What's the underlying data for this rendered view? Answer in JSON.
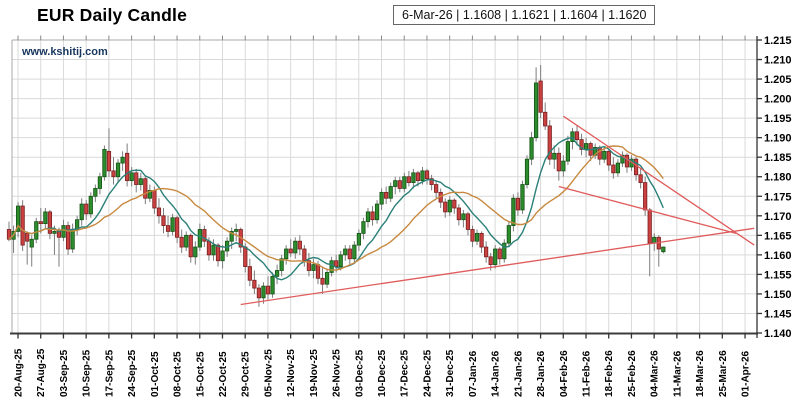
{
  "header": {
    "title": "EUR Daily Candle",
    "watermark": "www.kshitij.com",
    "quote_box": "6-Mar-26 | 1.1608 | 1.1621 | 1.1604 | 1.1620"
  },
  "colors": {
    "up_fill": "#2d8c2d",
    "up_stroke": "#145214",
    "down_fill": "#c94141",
    "down_stroke": "#7a1f1f",
    "wick": "#7d7d7d",
    "ma_fast": "#2b8078",
    "ma_slow": "#c8893f",
    "trendline": "#e05c5c",
    "grid": "#d9d9d9",
    "border": "#a8a8a8",
    "axis_dark": "#3c3c3c",
    "tick": "#333333",
    "label": "#000000"
  },
  "chart_data": {
    "type": "candlestick",
    "title": "EUR Daily Candle",
    "x_axis": {
      "ticks_per_label": 5,
      "label_rotation": -90,
      "labels": [
        "20-Aug-25",
        "27-Aug-25",
        "03-Sep-25",
        "10-Sep-25",
        "17-Sep-25",
        "24-Sep-25",
        "01-Oct-25",
        "08-Oct-25",
        "15-Oct-25",
        "22-Oct-25",
        "29-Oct-25",
        "05-Nov-25",
        "12-Nov-25",
        "19-Nov-25",
        "26-Nov-25",
        "03-Dec-25",
        "10-Dec-25",
        "17-Dec-25",
        "24-Dec-25",
        "31-Dec-25",
        "07-Jan-26",
        "14-Jan-26",
        "21-Jan-26",
        "28-Jan-26",
        "04-Feb-26",
        "11-Feb-26",
        "18-Feb-26",
        "25-Feb-26",
        "04-Mar-26",
        "11-Mar-26",
        "18-Mar-26",
        "25-Mar-26",
        "01-Apr-26"
      ]
    },
    "y_axis": {
      "side": "right",
      "min": 1.14,
      "max": 1.215,
      "step": 0.005,
      "tick_labels": [
        "1.215",
        "1.210",
        "1.205",
        "1.200",
        "1.195",
        "1.190",
        "1.185",
        "1.180",
        "1.175",
        "1.170",
        "1.165",
        "1.160",
        "1.155",
        "1.150",
        "1.145",
        "1.140"
      ]
    },
    "last_quote": {
      "date": "6-Mar-26",
      "open": 1.1608,
      "high": 1.1621,
      "low": 1.1604,
      "close": 1.162
    },
    "candles_format": [
      "date",
      "open",
      "high",
      "low",
      "close"
    ],
    "candles": [
      [
        "18-Aug-25",
        1.1665,
        1.1685,
        1.1635,
        1.164
      ],
      [
        "19-Aug-25",
        1.164,
        1.1675,
        1.1605,
        1.166
      ],
      [
        "20-Aug-25",
        1.166,
        1.1735,
        1.1645,
        1.1725
      ],
      [
        "21-Aug-25",
        1.1725,
        1.174,
        1.161,
        1.1625
      ],
      [
        "22-Aug-25",
        1.1655,
        1.166,
        1.1575,
        1.1635
      ],
      [
        "25-Aug-25",
        1.162,
        1.165,
        1.157,
        1.164
      ],
      [
        "26-Aug-25",
        1.164,
        1.1695,
        1.163,
        1.1685
      ],
      [
        "27-Aug-25",
        1.1685,
        1.172,
        1.1655,
        1.168
      ],
      [
        "28-Aug-25",
        1.168,
        1.172,
        1.1665,
        1.171
      ],
      [
        "29-Aug-25",
        1.171,
        1.1715,
        1.164,
        1.1655
      ],
      [
        "01-Sep-25",
        1.1655,
        1.1675,
        1.16,
        1.166
      ],
      [
        "02-Sep-25",
        1.166,
        1.167,
        1.157,
        1.1645
      ],
      [
        "03-Sep-25",
        1.1645,
        1.169,
        1.1635,
        1.1675
      ],
      [
        "04-Sep-25",
        1.1675,
        1.1685,
        1.16,
        1.1615
      ],
      [
        "05-Sep-25",
        1.1615,
        1.168,
        1.1605,
        1.1665
      ],
      [
        "08-Sep-25",
        1.1665,
        1.17,
        1.165,
        1.169
      ],
      [
        "09-Sep-25",
        1.169,
        1.1745,
        1.1675,
        1.173
      ],
      [
        "10-Sep-25",
        1.173,
        1.174,
        1.169,
        1.1705
      ],
      [
        "11-Sep-25",
        1.1705,
        1.176,
        1.1695,
        1.175
      ],
      [
        "12-Sep-25",
        1.175,
        1.178,
        1.1735,
        1.177
      ],
      [
        "15-Sep-25",
        1.177,
        1.181,
        1.1755,
        1.18
      ],
      [
        "16-Sep-25",
        1.18,
        1.188,
        1.179,
        1.187
      ],
      [
        "17-Sep-25",
        1.1865,
        1.1924,
        1.18,
        1.1815
      ],
      [
        "18-Sep-25",
        1.1815,
        1.185,
        1.178,
        1.18
      ],
      [
        "19-Sep-25",
        1.18,
        1.1845,
        1.1785,
        1.1835
      ],
      [
        "22-Sep-25",
        1.1835,
        1.1865,
        1.1815,
        1.185
      ],
      [
        "23-Sep-25",
        1.186,
        1.1885,
        1.1775,
        1.179
      ],
      [
        "24-Sep-25",
        1.179,
        1.1825,
        1.1775,
        1.181
      ],
      [
        "25-Sep-25",
        1.181,
        1.182,
        1.176,
        1.178
      ],
      [
        "26-Sep-25",
        1.178,
        1.181,
        1.1765,
        1.1795
      ],
      [
        "29-Sep-25",
        1.1795,
        1.18,
        1.173,
        1.1745
      ],
      [
        "30-Sep-25",
        1.1745,
        1.178,
        1.1735,
        1.1765
      ],
      [
        "01-Oct-25",
        1.1765,
        1.1775,
        1.1705,
        1.172
      ],
      [
        "02-Oct-25",
        1.172,
        1.1745,
        1.168,
        1.17
      ],
      [
        "03-Oct-25",
        1.17,
        1.172,
        1.1655,
        1.1675
      ],
      [
        "06-Oct-25",
        1.1675,
        1.17,
        1.1645,
        1.166
      ],
      [
        "07-Oct-25",
        1.166,
        1.1705,
        1.165,
        1.1695
      ],
      [
        "08-Oct-25",
        1.1695,
        1.17,
        1.163,
        1.1645
      ],
      [
        "09-Oct-25",
        1.1645,
        1.1665,
        1.1605,
        1.162
      ],
      [
        "10-Oct-25",
        1.162,
        1.166,
        1.161,
        1.165
      ],
      [
        "13-Oct-25",
        1.165,
        1.1655,
        1.158,
        1.1595
      ],
      [
        "14-Oct-25",
        1.1595,
        1.1635,
        1.1575,
        1.162
      ],
      [
        "15-Oct-25",
        1.162,
        1.168,
        1.161,
        1.1665
      ],
      [
        "16-Oct-25",
        1.1665,
        1.1675,
        1.162,
        1.1635
      ],
      [
        "17-Oct-25",
        1.1635,
        1.1645,
        1.1585,
        1.16
      ],
      [
        "20-Oct-25",
        1.16,
        1.164,
        1.1585,
        1.1625
      ],
      [
        "21-Oct-25",
        1.1625,
        1.163,
        1.157,
        1.1585
      ],
      [
        "22-Oct-25",
        1.1585,
        1.1625,
        1.1565,
        1.161
      ],
      [
        "23-Oct-25",
        1.161,
        1.1645,
        1.1595,
        1.1635
      ],
      [
        "24-Oct-25",
        1.1635,
        1.167,
        1.1615,
        1.166
      ],
      [
        "27-Oct-25",
        1.166,
        1.168,
        1.1635,
        1.1665
      ],
      [
        "28-Oct-25",
        1.1665,
        1.167,
        1.1605,
        1.162
      ],
      [
        "29-Oct-25",
        1.162,
        1.163,
        1.1555,
        1.157
      ],
      [
        "30-Oct-25",
        1.157,
        1.159,
        1.152,
        1.1535
      ],
      [
        "31-Oct-25",
        1.1535,
        1.156,
        1.15,
        1.1515
      ],
      [
        "03-Nov-25",
        1.1515,
        1.1525,
        1.1467,
        1.149
      ],
      [
        "04-Nov-25",
        1.149,
        1.153,
        1.1475,
        1.152
      ],
      [
        "05-Nov-25",
        1.152,
        1.1545,
        1.1485,
        1.15
      ],
      [
        "06-Nov-25",
        1.15,
        1.1555,
        1.149,
        1.1545
      ],
      [
        "07-Nov-25",
        1.1545,
        1.1575,
        1.1525,
        1.156
      ],
      [
        "10-Nov-25",
        1.156,
        1.16,
        1.1545,
        1.159
      ],
      [
        "11-Nov-25",
        1.159,
        1.1625,
        1.1575,
        1.1615
      ],
      [
        "12-Nov-25",
        1.1615,
        1.164,
        1.1595,
        1.1605
      ],
      [
        "13-Nov-25",
        1.1605,
        1.1645,
        1.159,
        1.1635
      ],
      [
        "14-Nov-25",
        1.1635,
        1.165,
        1.16,
        1.1615
      ],
      [
        "17-Nov-25",
        1.1615,
        1.1625,
        1.157,
        1.1585
      ],
      [
        "18-Nov-25",
        1.1585,
        1.1605,
        1.1545,
        1.156
      ],
      [
        "19-Nov-25",
        1.156,
        1.159,
        1.154,
        1.1575
      ],
      [
        "20-Nov-25",
        1.1575,
        1.1585,
        1.1525,
        1.154
      ],
      [
        "21-Nov-25",
        1.154,
        1.157,
        1.15,
        1.1525
      ],
      [
        "24-Nov-25",
        1.1525,
        1.1565,
        1.1515,
        1.1555
      ],
      [
        "25-Nov-25",
        1.1555,
        1.1595,
        1.1545,
        1.1585
      ],
      [
        "26-Nov-25",
        1.1585,
        1.16,
        1.1555,
        1.157
      ],
      [
        "27-Nov-25",
        1.157,
        1.161,
        1.156,
        1.16
      ],
      [
        "28-Nov-25",
        1.16,
        1.1625,
        1.1585,
        1.1615
      ],
      [
        "01-Dec-25",
        1.1615,
        1.1625,
        1.1575,
        1.159
      ],
      [
        "02-Dec-25",
        1.159,
        1.1635,
        1.158,
        1.1625
      ],
      [
        "03-Dec-25",
        1.1625,
        1.1665,
        1.161,
        1.1655
      ],
      [
        "04-Dec-25",
        1.1655,
        1.1695,
        1.164,
        1.1685
      ],
      [
        "05-Dec-25",
        1.1685,
        1.172,
        1.167,
        1.171
      ],
      [
        "08-Dec-25",
        1.171,
        1.1725,
        1.1675,
        1.169
      ],
      [
        "09-Dec-25",
        1.169,
        1.174,
        1.168,
        1.173
      ],
      [
        "10-Dec-25",
        1.173,
        1.177,
        1.1715,
        1.176
      ],
      [
        "11-Dec-25",
        1.176,
        1.1775,
        1.173,
        1.1745
      ],
      [
        "12-Dec-25",
        1.1745,
        1.1785,
        1.1735,
        1.1775
      ],
      [
        "15-Dec-25",
        1.1775,
        1.18,
        1.1755,
        1.179
      ],
      [
        "16-Dec-25",
        1.179,
        1.18,
        1.176,
        1.177
      ],
      [
        "17-Dec-25",
        1.177,
        1.181,
        1.176,
        1.18
      ],
      [
        "18-Dec-25",
        1.18,
        1.1815,
        1.1775,
        1.1785
      ],
      [
        "19-Dec-25",
        1.1785,
        1.182,
        1.177,
        1.181
      ],
      [
        "22-Dec-25",
        1.181,
        1.1815,
        1.1775,
        1.179
      ],
      [
        "23-Dec-25",
        1.179,
        1.1825,
        1.178,
        1.1815
      ],
      [
        "24-Dec-25",
        1.1815,
        1.182,
        1.178,
        1.1795
      ],
      [
        "25-Dec-25",
        1.1795,
        1.1805,
        1.1765,
        1.178
      ],
      [
        "26-Dec-25",
        1.178,
        1.179,
        1.1745,
        1.176
      ],
      [
        "29-Dec-25",
        1.176,
        1.177,
        1.172,
        1.1735
      ],
      [
        "30-Dec-25",
        1.1735,
        1.1745,
        1.1695,
        1.171
      ],
      [
        "31-Dec-25",
        1.171,
        1.175,
        1.17,
        1.174
      ],
      [
        "01-Jan-26",
        1.174,
        1.1745,
        1.1705,
        1.172
      ],
      [
        "02-Jan-26",
        1.172,
        1.173,
        1.1675,
        1.169
      ],
      [
        "05-Jan-26",
        1.169,
        1.1715,
        1.167,
        1.1705
      ],
      [
        "06-Jan-26",
        1.1705,
        1.171,
        1.165,
        1.1665
      ],
      [
        "07-Jan-26",
        1.1665,
        1.1675,
        1.162,
        1.1635
      ],
      [
        "08-Jan-26",
        1.1635,
        1.1665,
        1.1625,
        1.1655
      ],
      [
        "09-Jan-26",
        1.1655,
        1.166,
        1.1605,
        1.162
      ],
      [
        "12-Jan-26",
        1.162,
        1.1635,
        1.158,
        1.1595
      ],
      [
        "13-Jan-26",
        1.1595,
        1.1605,
        1.156,
        1.1575
      ],
      [
        "14-Jan-26",
        1.1575,
        1.1625,
        1.1565,
        1.1615
      ],
      [
        "15-Jan-26",
        1.1615,
        1.162,
        1.1575,
        1.159
      ],
      [
        "16-Jan-26",
        1.159,
        1.164,
        1.158,
        1.163
      ],
      [
        "19-Jan-26",
        1.163,
        1.1685,
        1.162,
        1.1675
      ],
      [
        "20-Jan-26",
        1.1675,
        1.1755,
        1.166,
        1.1745
      ],
      [
        "21-Jan-26",
        1.1745,
        1.176,
        1.17,
        1.1715
      ],
      [
        "22-Jan-26",
        1.1715,
        1.179,
        1.1705,
        1.178
      ],
      [
        "23-Jan-26",
        1.178,
        1.1855,
        1.177,
        1.1845
      ],
      [
        "26-Jan-26",
        1.1845,
        1.1915,
        1.183,
        1.19
      ],
      [
        "27-Jan-26",
        1.19,
        1.208,
        1.189,
        1.204
      ],
      [
        "28-Jan-26",
        1.2045,
        1.2086,
        1.195,
        1.1965
      ],
      [
        "29-Jan-26",
        1.1965,
        1.199,
        1.192,
        1.193
      ],
      [
        "30-Jan-26",
        1.193,
        1.1945,
        1.183,
        1.1845
      ],
      [
        "02-Feb-26",
        1.1845,
        1.188,
        1.182,
        1.186
      ],
      [
        "03-Feb-26",
        1.186,
        1.1875,
        1.179,
        1.1815
      ],
      [
        "04-Feb-26",
        1.1815,
        1.1855,
        1.18,
        1.184
      ],
      [
        "05-Feb-26",
        1.184,
        1.1905,
        1.183,
        1.189
      ],
      [
        "06-Feb-26",
        1.189,
        1.1925,
        1.187,
        1.1915
      ],
      [
        "09-Feb-26",
        1.1915,
        1.193,
        1.188,
        1.1895
      ],
      [
        "10-Feb-26",
        1.1895,
        1.191,
        1.1855,
        1.187
      ],
      [
        "11-Feb-26",
        1.187,
        1.19,
        1.185,
        1.1885
      ],
      [
        "12-Feb-26",
        1.1885,
        1.189,
        1.184,
        1.1855
      ],
      [
        "13-Feb-26",
        1.1855,
        1.1885,
        1.1845,
        1.1875
      ],
      [
        "16-Feb-26",
        1.1875,
        1.188,
        1.183,
        1.1845
      ],
      [
        "17-Feb-26",
        1.1845,
        1.1875,
        1.1835,
        1.1865
      ],
      [
        "18-Feb-26",
        1.1865,
        1.187,
        1.1815,
        1.183
      ],
      [
        "19-Feb-26",
        1.183,
        1.185,
        1.1795,
        1.181
      ],
      [
        "20-Feb-26",
        1.181,
        1.1845,
        1.18,
        1.1835
      ],
      [
        "23-Feb-26",
        1.1835,
        1.1865,
        1.1825,
        1.1855
      ],
      [
        "24-Feb-26",
        1.1855,
        1.186,
        1.181,
        1.1825
      ],
      [
        "25-Feb-26",
        1.1825,
        1.1855,
        1.1815,
        1.1845
      ],
      [
        "26-Feb-26",
        1.1845,
        1.185,
        1.179,
        1.1805
      ],
      [
        "27-Feb-26",
        1.1805,
        1.182,
        1.177,
        1.1785
      ],
      [
        "02-Mar-26",
        1.1785,
        1.18,
        1.17,
        1.1715
      ],
      [
        "03-Mar-26",
        1.1715,
        1.172,
        1.1545,
        1.163
      ],
      [
        "04-Mar-26",
        1.163,
        1.1655,
        1.161,
        1.1645
      ],
      [
        "05-Mar-26",
        1.1645,
        1.165,
        1.157,
        1.1615
      ],
      [
        "06-Mar-26",
        1.1608,
        1.1621,
        1.1604,
        1.162
      ]
    ],
    "moving_averages": [
      {
        "name": "fast-ma",
        "period": 9
      },
      {
        "name": "slow-ma",
        "period": 20
      }
    ],
    "trendlines": [
      {
        "name": "ascending-support",
        "points": [
          [
            51,
            1.1473
          ],
          [
            164,
            1.1668
          ]
        ]
      },
      {
        "name": "descending-resistance-steep",
        "points": [
          [
            122,
            1.1955
          ],
          [
            164,
            1.1625
          ]
        ]
      },
      {
        "name": "descending-resistance-shallow",
        "points": [
          [
            121,
            1.1775
          ],
          [
            160,
            1.1655
          ]
        ]
      }
    ],
    "grid": true
  }
}
